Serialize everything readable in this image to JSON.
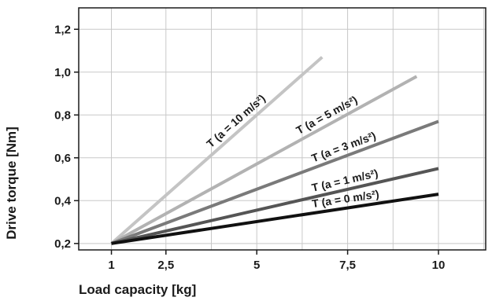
{
  "chart_data": {
    "type": "line",
    "xlabel": "Load capacity [kg]",
    "ylabel": "Drive torque [Nm]",
    "xlim": [
      0.1,
      11.3
    ],
    "ylim": [
      0.17,
      1.3
    ],
    "xticks": [
      {
        "value": 1,
        "label": "1"
      },
      {
        "value": 2.5,
        "label": "2,5"
      },
      {
        "value": 5,
        "label": "5"
      },
      {
        "value": 7.5,
        "label": "7,5"
      },
      {
        "value": 10,
        "label": "10"
      }
    ],
    "yticks": [
      {
        "value": 0.2,
        "label": "0,2"
      },
      {
        "value": 0.4,
        "label": "0,4"
      },
      {
        "value": 0.6,
        "label": "0,6"
      },
      {
        "value": 0.8,
        "label": "0,8"
      },
      {
        "value": 1.0,
        "label": "1,0"
      },
      {
        "value": 1.2,
        "label": "1,2"
      }
    ],
    "grid": true,
    "series": [
      {
        "name": "T (a = 10 m/s²)",
        "color": "#c4c4c4",
        "x": [
          1,
          6.8
        ],
        "y": [
          0.2,
          1.07
        ]
      },
      {
        "name": "T (a = 5 m/s²)",
        "color": "#b2b2b2",
        "x": [
          1,
          9.4
        ],
        "y": [
          0.2,
          0.98
        ]
      },
      {
        "name": "T (a = 3 m/s²)",
        "color": "#7a7a7a",
        "x": [
          1,
          10
        ],
        "y": [
          0.2,
          0.77
        ]
      },
      {
        "name": "T (a = 1 m/s²)",
        "color": "#555555",
        "x": [
          1,
          10
        ],
        "y": [
          0.2,
          0.55
        ]
      },
      {
        "name": "T (a = 0 m/s²)",
        "color": "#111111",
        "x": [
          1,
          10
        ],
        "y": [
          0.2,
          0.43
        ]
      }
    ]
  }
}
